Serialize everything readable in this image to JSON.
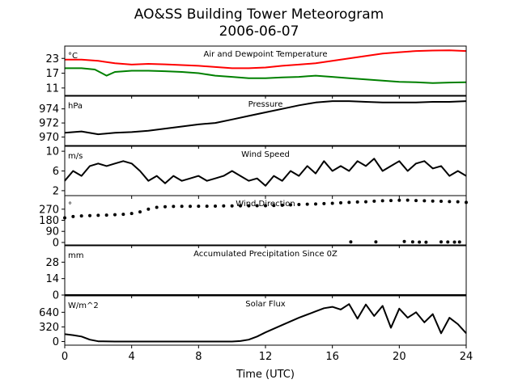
{
  "header": {
    "title": "AO&SS Building Tower Meteorogram",
    "date": "2006-06-07"
  },
  "xaxis": {
    "label": "Time (UTC)",
    "ticks": [
      "0",
      "4",
      "8",
      "12",
      "16",
      "20",
      "24"
    ],
    "range": [
      0,
      24
    ]
  },
  "colors": {
    "temperature": "#ff0000",
    "dewpoint": "#008000",
    "line": "#000000"
  },
  "chart_data": [
    {
      "type": "line",
      "title": "Air and Dewpoint Temperature",
      "unit": "°C",
      "ylim": [
        8,
        28
      ],
      "yticks": [
        11,
        17,
        23
      ],
      "series": [
        {
          "name": "",
          "color": "#ff0000",
          "x": [
            0,
            1,
            2,
            3,
            4,
            5,
            6,
            7,
            8,
            9,
            10,
            11,
            12,
            13,
            14,
            15,
            16,
            17,
            18,
            19,
            20,
            21,
            22,
            23,
            24
          ],
          "values": [
            22.5,
            22.5,
            22,
            21,
            20.5,
            20.8,
            20.6,
            20.3,
            20,
            19.5,
            19,
            19,
            19.3,
            20,
            20.5,
            21,
            22,
            23,
            24,
            25,
            25.5,
            26,
            26.2,
            26.3,
            26
          ]
        },
        {
          "name": "",
          "color": "#008000",
          "x": [
            0,
            1,
            1.8,
            2.5,
            3,
            4,
            5,
            6,
            7,
            8,
            9,
            10,
            11,
            12,
            13,
            14,
            15,
            16,
            17,
            18,
            19,
            20,
            21,
            22,
            23,
            24
          ],
          "values": [
            19,
            19,
            18.5,
            16,
            17.5,
            18,
            18,
            17.8,
            17.5,
            17,
            16,
            15.5,
            15,
            15,
            15.3,
            15.5,
            16,
            15.5,
            15,
            14.5,
            14,
            13.5,
            13.3,
            13,
            13.2,
            13.3
          ]
        }
      ]
    },
    {
      "type": "line",
      "title": "Pressure",
      "unit": "hPa",
      "ylim": [
        968.8,
        975.8
      ],
      "yticks": [
        970,
        972,
        974
      ],
      "series": [
        {
          "name": "",
          "color": "#000000",
          "x": [
            0,
            1,
            2,
            3,
            4,
            5,
            6,
            7,
            8,
            9,
            10,
            11,
            12,
            13,
            14,
            15,
            16,
            17,
            18,
            19,
            20,
            21,
            22,
            23,
            24
          ],
          "values": [
            970.6,
            970.8,
            970.4,
            970.6,
            970.7,
            970.9,
            971.2,
            971.5,
            971.8,
            972,
            972.5,
            973,
            973.5,
            974,
            974.5,
            974.9,
            975.1,
            975.1,
            975,
            974.9,
            974.9,
            974.9,
            975,
            975,
            975.1
          ]
        }
      ]
    },
    {
      "type": "line",
      "title": "Wind Speed",
      "unit": "m/s",
      "ylim": [
        1,
        11
      ],
      "yticks": [
        2,
        6,
        10
      ],
      "series": [
        {
          "name": "",
          "color": "#000000",
          "x": [
            0,
            0.5,
            1,
            1.5,
            2,
            2.5,
            3,
            3.5,
            4,
            4.5,
            5,
            5.5,
            6,
            6.5,
            7,
            7.5,
            8,
            8.5,
            9,
            9.5,
            10,
            10.5,
            11,
            11.5,
            12,
            12.5,
            13,
            13.5,
            14,
            14.5,
            15,
            15.5,
            16,
            16.5,
            17,
            17.5,
            18,
            18.5,
            19,
            19.5,
            20,
            20.5,
            21,
            21.5,
            22,
            22.5,
            23,
            23.5,
            24
          ],
          "values": [
            4,
            6,
            5,
            7,
            7.5,
            7,
            7.5,
            8,
            7.5,
            6,
            4,
            5,
            3.5,
            5,
            4,
            4.5,
            5,
            4,
            4.5,
            5,
            6,
            5,
            4,
            4.5,
            3,
            5,
            4,
            6,
            5,
            7,
            5.5,
            8,
            6,
            7,
            6,
            8,
            7,
            8.5,
            6,
            7,
            8,
            6,
            7.5,
            8,
            6.5,
            7,
            5,
            6,
            5
          ]
        }
      ]
    },
    {
      "type": "scatter",
      "title": "Wind Direction",
      "unit": "°",
      "ylim": [
        -20,
        380
      ],
      "yticks": [
        0,
        90,
        180,
        270
      ],
      "series": [
        {
          "name": "",
          "color": "#000000",
          "x": [
            0,
            0.5,
            1,
            1.5,
            2,
            2.5,
            3,
            3.5,
            4,
            4.5,
            5,
            5.5,
            6,
            6.5,
            7,
            7.5,
            8,
            8.5,
            9,
            9.5,
            10,
            10.5,
            11,
            11.5,
            12,
            12.5,
            13,
            13.5,
            14,
            14.5,
            15,
            15.5,
            16,
            16.5,
            17,
            17.5,
            18,
            18.5,
            19,
            19.5,
            20,
            20.5,
            21,
            21.5,
            22,
            22.5,
            23,
            23.5,
            24,
            17.1,
            18.6,
            20.3,
            20.8,
            21.2,
            21.6,
            22.5,
            22.9,
            23.3,
            23.6
          ],
          "values": [
            200,
            210,
            215,
            218,
            220,
            222,
            225,
            228,
            235,
            248,
            270,
            285,
            290,
            292,
            293,
            293,
            294,
            294,
            295,
            296,
            296,
            297,
            297,
            298,
            298,
            300,
            302,
            305,
            308,
            310,
            312,
            315,
            318,
            322,
            325,
            328,
            330,
            335,
            338,
            340,
            342,
            343,
            340,
            338,
            336,
            334,
            332,
            330,
            325,
            5,
            5,
            8,
            5,
            3,
            2,
            5,
            4,
            3,
            4
          ]
        }
      ]
    },
    {
      "type": "line",
      "title": "Accumulated Precipitation Since 0Z",
      "unit": "mm",
      "ylim": [
        0,
        42
      ],
      "yticks": [
        0,
        14,
        28
      ],
      "series": [
        {
          "name": "",
          "color": "#000000",
          "x": [
            0,
            24
          ],
          "values": [
            0,
            0
          ]
        }
      ]
    },
    {
      "type": "line",
      "title": "Solar Flux",
      "unit": "W/m^2",
      "ylim": [
        -80,
        1000
      ],
      "yticks": [
        0,
        320,
        640
      ],
      "series": [
        {
          "name": "",
          "color": "#000000",
          "x": [
            0,
            0.5,
            1,
            1.5,
            2,
            3,
            4,
            6,
            8,
            10,
            10.5,
            11,
            11.5,
            12,
            13,
            14,
            15,
            15.5,
            16,
            16.5,
            17,
            17.5,
            18,
            18.5,
            19,
            19.5,
            20,
            20.5,
            21,
            21.5,
            22,
            22.5,
            23,
            23.5,
            24
          ],
          "values": [
            160,
            140,
            110,
            40,
            5,
            0,
            0,
            0,
            0,
            0,
            10,
            40,
            110,
            200,
            360,
            520,
            660,
            730,
            760,
            700,
            820,
            500,
            810,
            560,
            780,
            300,
            720,
            520,
            640,
            420,
            600,
            180,
            520,
            380,
            180
          ]
        }
      ]
    }
  ]
}
